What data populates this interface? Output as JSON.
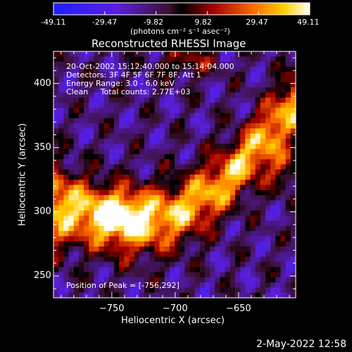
{
  "colorbar": {
    "ticks": [
      "-49.11",
      "-29.47",
      "-9.82",
      "9.82",
      "29.47",
      "49.11"
    ],
    "range": [
      -49.11,
      49.11
    ],
    "units": "(photons cm⁻² s⁻¹ asec⁻²)"
  },
  "chart_data": {
    "type": "heatmap",
    "title": "Reconstructed RHESSI Image",
    "xlabel": "Heliocentric X (arcsec)",
    "ylabel": "Heliocentric Y (arcsec)",
    "xlim": [
      -796,
      -605
    ],
    "ylim": [
      233,
      425
    ],
    "xticks": [
      "−750",
      "−700",
      "−650"
    ],
    "xtick_values": [
      -750,
      -700,
      -650
    ],
    "yticks": [
      "250",
      "300",
      "350",
      "400"
    ],
    "ytick_values": [
      250,
      300,
      350,
      400
    ],
    "value_range": [
      -49.11,
      49.11
    ],
    "peak": [
      -756,
      292
    ],
    "annotations": {
      "time": "20-Oct-2002 15:12:40.000 to 15:14:04.000",
      "detectors": "Detectors: 3F 4F 5F 6F 7F 8F, Att 1",
      "energy": "Energy Range: 3.0 - 6.0 keV",
      "method": "Clean     Total counts: 2.77E+03",
      "peak_text": "Position of Peak = [-756,292]"
    }
  },
  "footer": {
    "date": "2-May-2022 12:58"
  }
}
